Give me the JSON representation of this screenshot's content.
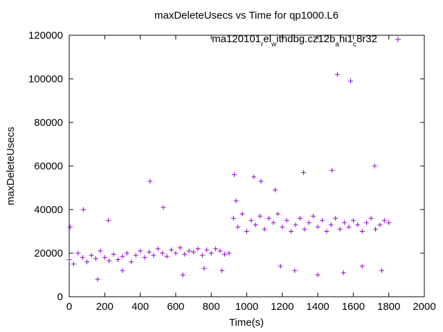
{
  "chart_data": {
    "type": "scatter",
    "title": "maxDeleteUsecs vs Time for qp1000.L6",
    "xlabel": "Time(s)",
    "ylabel": "maxDeleteUsecs",
    "xlim": [
      0,
      2000
    ],
    "ylim": [
      0,
      120000
    ],
    "xticks": [
      0,
      200,
      400,
      600,
      800,
      1000,
      1200,
      1400,
      1600,
      1800,
      2000
    ],
    "yticks": [
      0,
      20000,
      40000,
      60000,
      80000,
      100000,
      120000
    ],
    "grid": false,
    "legend_position": "top-right",
    "marker": "+",
    "series": [
      {
        "name": "ma120101_rel_withdbg.cz12b_ahi1_c8r32",
        "legend_parts": [
          {
            "text": "ma120101",
            "sub": false
          },
          {
            "text": "r",
            "sub": true
          },
          {
            "text": "el",
            "sub": false
          },
          {
            "text": "w",
            "sub": true
          },
          {
            "text": "ithdbg.cz12b",
            "sub": false
          },
          {
            "text": "a",
            "sub": true
          },
          {
            "text": "hi1",
            "sub": false
          },
          {
            "text": "c",
            "sub": true
          },
          {
            "text": "8r32",
            "sub": false
          }
        ],
        "color": "#9400d3",
        "x": [
          0,
          25,
          50,
          75,
          100,
          125,
          150,
          175,
          200,
          225,
          250,
          275,
          300,
          325,
          350,
          375,
          400,
          425,
          450,
          475,
          500,
          525,
          550,
          575,
          600,
          625,
          650,
          675,
          700,
          725,
          750,
          775,
          800,
          825,
          850,
          875,
          900,
          925,
          950,
          975,
          1000,
          1025,
          1050,
          1075,
          1100,
          1125,
          1150,
          1175,
          1200,
          1225,
          1250,
          1275,
          1300,
          1325,
          1350,
          1375,
          1400,
          1425,
          1450,
          1475,
          1500,
          1525,
          1550,
          1575,
          1600,
          1625,
          1650,
          1675,
          1700,
          1725,
          1750,
          1775,
          1800,
          5,
          80,
          160,
          220,
          300,
          455,
          530,
          640,
          760,
          860,
          930,
          940,
          1040,
          1080,
          1160,
          1190,
          1270,
          1320,
          1400,
          1480,
          1510,
          1545,
          1585,
          1650,
          1720,
          1760
        ],
        "y": [
          17000,
          15000,
          20000,
          18000,
          16000,
          19000,
          17500,
          21000,
          18000,
          16500,
          19500,
          17000,
          18500,
          20000,
          16000,
          19000,
          21000,
          18000,
          20500,
          19000,
          22000,
          20000,
          18500,
          21500,
          20000,
          22500,
          19500,
          21000,
          20500,
          22000,
          19000,
          21500,
          20000,
          22000,
          21000,
          19500,
          20000,
          36000,
          32000,
          38000,
          30000,
          35000,
          33000,
          37000,
          31000,
          36000,
          34000,
          38000,
          32000,
          35000,
          30000,
          33000,
          36000,
          31000,
          34000,
          37000,
          32000,
          35000,
          30000,
          33000,
          36000,
          31000,
          34000,
          32000,
          35000,
          33000,
          30000,
          34000,
          36000,
          31000,
          33000,
          35000,
          34000,
          32000,
          40000,
          8000,
          35000,
          12000,
          53000,
          41000,
          10000,
          13000,
          12000,
          56000,
          44000,
          55000,
          53000,
          49000,
          14000,
          12000,
          57000,
          10000,
          58000,
          102000,
          11000,
          99000,
          14000,
          60000,
          12000
        ]
      }
    ]
  }
}
